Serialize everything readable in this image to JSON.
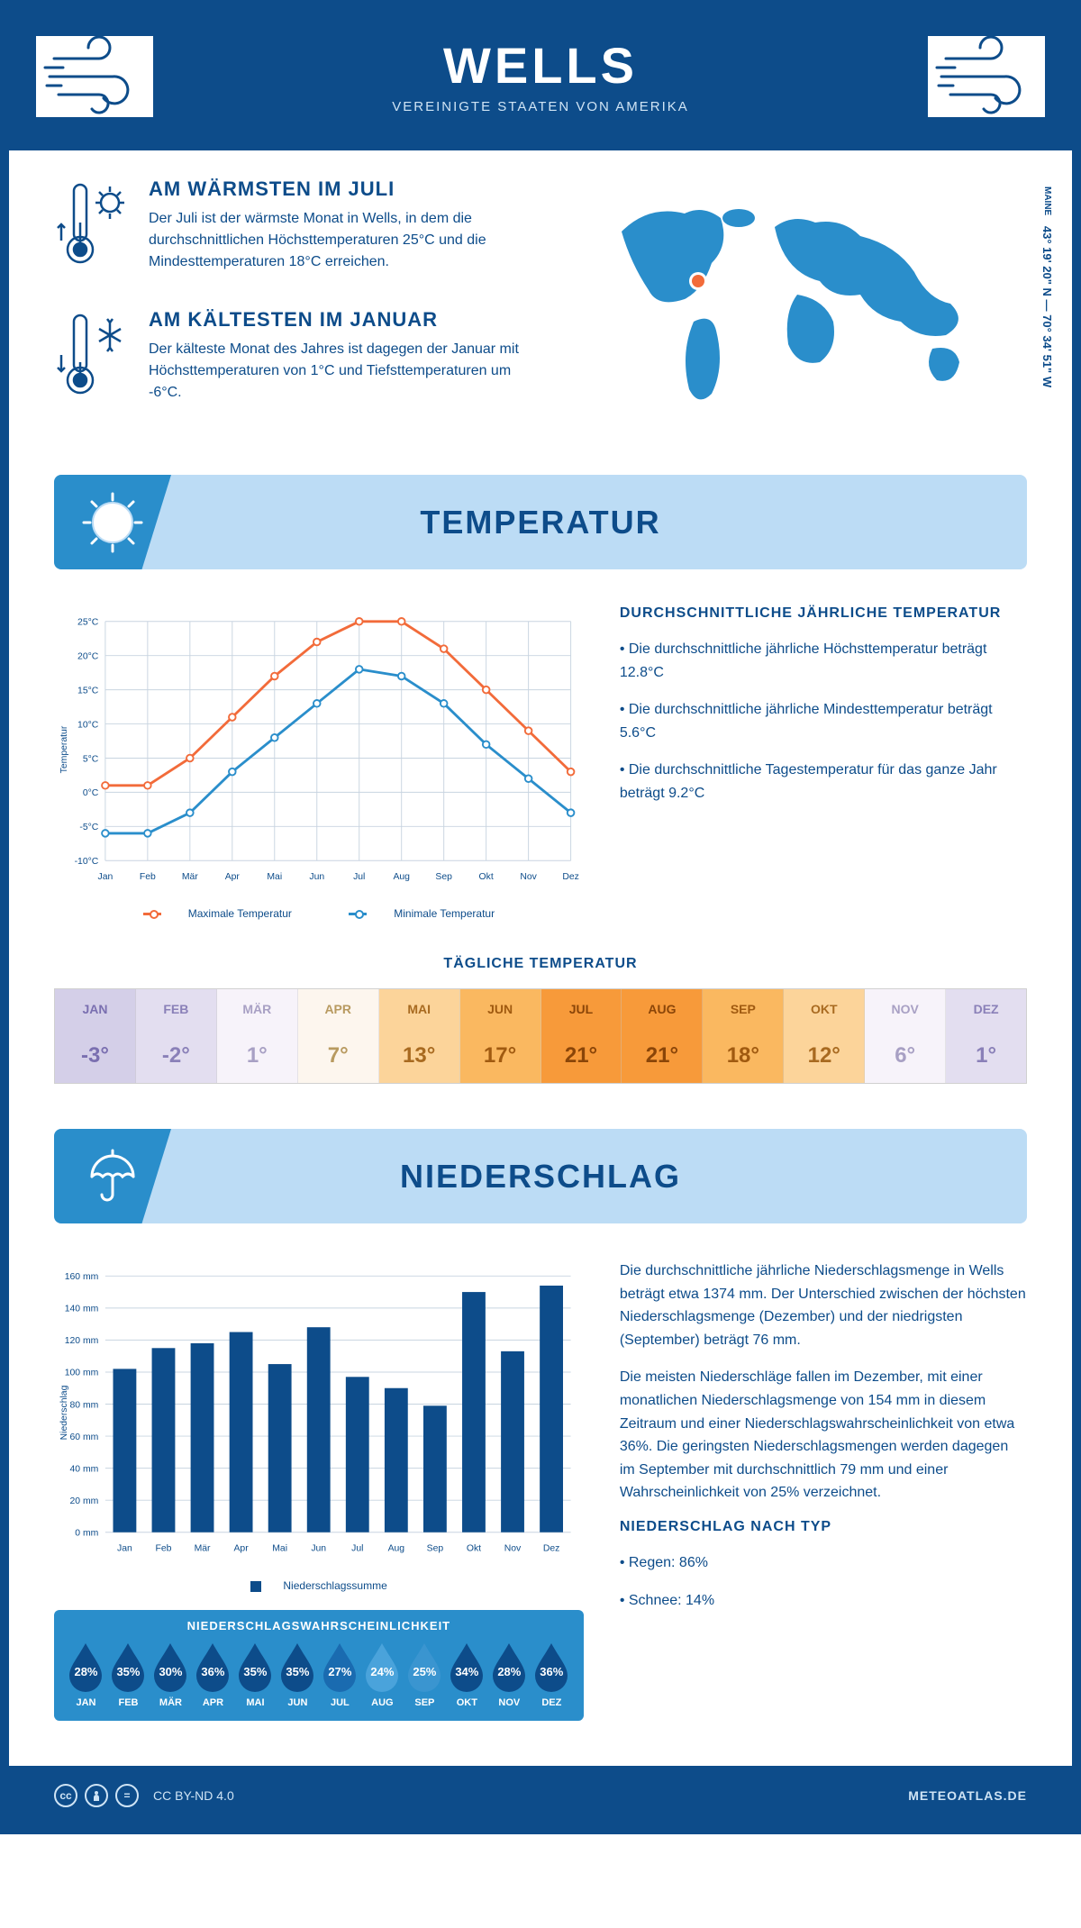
{
  "header": {
    "title": "WELLS",
    "subtitle": "VEREINIGTE STAATEN VON AMERIKA"
  },
  "coords": {
    "state": "MAINE",
    "lat": "43° 19' 20\" N",
    "lon": "70° 34' 51\" W"
  },
  "facts": {
    "warm": {
      "title": "AM WÄRMSTEN IM JULI",
      "text": "Der Juli ist der wärmste Monat in Wells, in dem die durchschnittlichen Höchsttemperaturen 25°C und die Mindesttemperaturen 18°C erreichen."
    },
    "cold": {
      "title": "AM KÄLTESTEN IM JANUAR",
      "text": "Der kälteste Monat des Jahres ist dagegen der Januar mit Höchsttemperaturen von 1°C und Tiefsttemperaturen um -6°C."
    }
  },
  "months": [
    "Jan",
    "Feb",
    "Mär",
    "Apr",
    "Mai",
    "Jun",
    "Jul",
    "Aug",
    "Sep",
    "Okt",
    "Nov",
    "Dez"
  ],
  "months_upper": [
    "JAN",
    "FEB",
    "MÄR",
    "APR",
    "MAI",
    "JUN",
    "JUL",
    "AUG",
    "SEP",
    "OKT",
    "NOV",
    "DEZ"
  ],
  "temperature": {
    "section_title": "TEMPERATUR",
    "ylabel": "Temperatur",
    "ylim": [
      -10,
      25
    ],
    "ytick_step": 5,
    "max": [
      1,
      1,
      5,
      11,
      17,
      22,
      25,
      25,
      21,
      15,
      9,
      3
    ],
    "min": [
      -6,
      -6,
      -3,
      3,
      8,
      13,
      18,
      17,
      13,
      7,
      2,
      -3
    ],
    "max_color": "#f26b3a",
    "min_color": "#2a8ecb",
    "grid_color": "#c8d4e0",
    "legend_max": "Maximale Temperatur",
    "legend_min": "Minimale Temperatur",
    "info_title": "DURCHSCHNITTLICHE JÄHRLICHE TEMPERATUR",
    "info_bullets": [
      "• Die durchschnittliche jährliche Höchsttemperatur beträgt 12.8°C",
      "• Die durchschnittliche jährliche Mindesttemperatur beträgt 5.6°C",
      "• Die durchschnittliche Tagestemperatur für das ganze Jahr beträgt 9.2°C"
    ]
  },
  "daily_temp": {
    "title": "TÄGLICHE TEMPERATUR",
    "values": [
      -3,
      -2,
      1,
      7,
      13,
      17,
      21,
      21,
      18,
      12,
      6,
      1
    ],
    "labels": [
      "-3°",
      "-2°",
      "1°",
      "7°",
      "13°",
      "17°",
      "21°",
      "21°",
      "18°",
      "12°",
      "6°",
      "1°"
    ],
    "cell_colors": [
      "#d4cfe8",
      "#e3def0",
      "#f7f3fa",
      "#fdf6ee",
      "#fcd49a",
      "#fab860",
      "#f79a3a",
      "#f79a3a",
      "#fab860",
      "#fcd49a",
      "#f7f3fa",
      "#e3def0"
    ],
    "text_colors": [
      "#7a6fb0",
      "#8a80b8",
      "#a8a0c4",
      "#b89a60",
      "#a86a20",
      "#a05a10",
      "#8a4508",
      "#8a4508",
      "#a05a10",
      "#a86a20",
      "#a8a0c4",
      "#8a80b8"
    ]
  },
  "precipitation": {
    "section_title": "NIEDERSCHLAG",
    "ylabel": "Niederschlag",
    "ylim": [
      0,
      160
    ],
    "ytick_step": 20,
    "values": [
      102,
      115,
      118,
      125,
      105,
      128,
      97,
      90,
      79,
      150,
      113,
      154
    ],
    "bar_color": "#0d4c8a",
    "legend": "Niederschlagssumme",
    "info_p1": "Die durchschnittliche jährliche Niederschlagsmenge in Wells beträgt etwa 1374 mm. Der Unterschied zwischen der höchsten Niederschlagsmenge (Dezember) und der niedrigsten (September) beträgt 76 mm.",
    "info_p2": "Die meisten Niederschläge fallen im Dezember, mit einer monatlichen Niederschlagsmenge von 154 mm in diesem Zeitraum und einer Niederschlagswahrscheinlichkeit von etwa 36%. Die geringsten Niederschlagsmengen werden dagegen im September mit durchschnittlich 79 mm und einer Wahrscheinlichkeit von 25% verzeichnet.",
    "type_title": "NIEDERSCHLAG NACH TYP",
    "type_bullets": [
      "• Regen: 86%",
      "• Schnee: 14%"
    ]
  },
  "probability": {
    "title": "NIEDERSCHLAGSWAHRSCHEINLICHKEIT",
    "values": [
      28,
      35,
      30,
      36,
      35,
      35,
      27,
      24,
      25,
      34,
      28,
      36
    ],
    "labels": [
      "28%",
      "35%",
      "30%",
      "36%",
      "35%",
      "35%",
      "27%",
      "24%",
      "25%",
      "34%",
      "28%",
      "36%"
    ],
    "drop_colors": [
      "#0d4c8a",
      "#0d4c8a",
      "#0d4c8a",
      "#0d4c8a",
      "#0d4c8a",
      "#0d4c8a",
      "#1a6bb0",
      "#4aa3db",
      "#3a95d0",
      "#0d4c8a",
      "#0d4c8a",
      "#0d4c8a"
    ]
  },
  "footer": {
    "license": "CC BY-ND 4.0",
    "site": "METEOATLAS.DE"
  },
  "colors": {
    "primary": "#0d4c8a",
    "secondary": "#2a8ecb",
    "section_bg": "#bcdcf5"
  }
}
